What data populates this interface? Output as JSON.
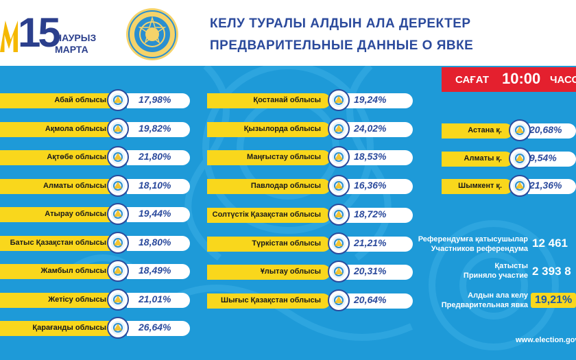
{
  "header": {
    "logo_number": "15",
    "logo_line1": "НАУРЫЗ",
    "logo_line2": "МАРТА",
    "title_line1": "КЕЛУ ТУРАЛЫ АЛДЫН АЛА ДЕРЕКТЕР",
    "title_line2": "ПРЕДВАРИТЕЛЬНЫЕ ДАННЫЕ О ЯВКЕ"
  },
  "time_box": {
    "label": "САҒАТ",
    "value": "10:00",
    "suffix": "ЧАСОВ"
  },
  "column1": [
    {
      "name": "Абай облысы",
      "value": "17,98%"
    },
    {
      "name": "Ақмола облысы",
      "value": "19,82%"
    },
    {
      "name": "Ақтөбе облысы",
      "value": "21,80%"
    },
    {
      "name": "Алматы облысы",
      "value": "18,10%"
    },
    {
      "name": "Атырау облысы",
      "value": "19,44%"
    },
    {
      "name": "Батыс Қазақстан облысы",
      "value": "18,80%"
    },
    {
      "name": "Жамбыл облысы",
      "value": "18,49%"
    },
    {
      "name": "Жетісу облысы",
      "value": "21,01%"
    },
    {
      "name": "Қарағанды облысы",
      "value": "26,64%"
    }
  ],
  "column2": [
    {
      "name": "Қостанай облысы",
      "value": "19,24%"
    },
    {
      "name": "Қызылорда облысы",
      "value": "24,02%"
    },
    {
      "name": "Маңғыстау облысы",
      "value": "18,53%"
    },
    {
      "name": "Павлодар облысы",
      "value": "16,36%"
    },
    {
      "name": "Солтүстік Қазақстан облысы",
      "value": "18,72%"
    },
    {
      "name": "Түркістан облысы",
      "value": "21,21%"
    },
    {
      "name": "Ұлытау облысы",
      "value": "20,31%"
    },
    {
      "name": "Шығыс Қазақстан облысы",
      "value": "20,64%"
    }
  ],
  "cities": [
    {
      "name": "Астана қ.",
      "value": "20,68%"
    },
    {
      "name": "Алматы қ.",
      "value": "9,54%"
    },
    {
      "name": "Шымкент қ.",
      "value": "21,36%"
    }
  ],
  "stats": {
    "participants_kz": "Референдумға қатысушылар",
    "participants_ru": "Участников референдума",
    "participants_value": "12 461",
    "voted_kz": "Қатысты",
    "voted_ru": "Приняло участие",
    "voted_value": "2 393 8",
    "turnout_kz": "Алдын ала келу",
    "turnout_ru": "Предварительная явка",
    "turnout_value": "19,21%"
  },
  "website": "www.election.gov",
  "colors": {
    "header_blue": "#2b4a9c",
    "background_blue": "#1e9ad8",
    "yellow": "#f9d71c",
    "red": "#e4202e"
  }
}
